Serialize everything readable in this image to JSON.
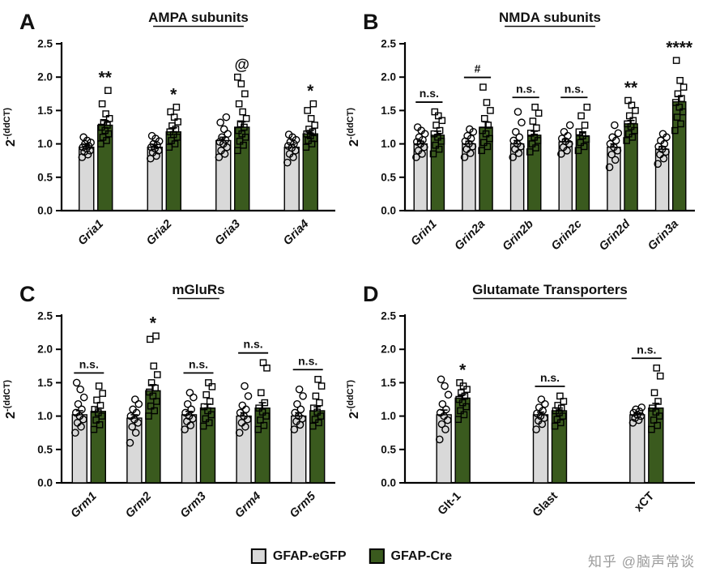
{
  "page": {
    "background": "#ffffff",
    "watermark": "知乎 @脑声常谈"
  },
  "legend": {
    "items": [
      {
        "label": "GFAP-eGFP",
        "color": "#d9d9d9"
      },
      {
        "label": "GFAP-Cre",
        "color": "#3a5a1e"
      }
    ]
  },
  "chart_data": [
    {
      "type": "bar",
      "panel": "A",
      "title": "AMPA subunits",
      "ylabel_base": "2",
      "ylabel_sup": "-(ddCT)",
      "ylim": [
        0,
        2.5
      ],
      "yticks": [
        0,
        0.5,
        1,
        1.5,
        2,
        2.5
      ],
      "categories": [
        "Gria1",
        "Gria2",
        "Gria3",
        "Gria4"
      ],
      "categories_italic": true,
      "series": [
        {
          "name": "GFAP-eGFP",
          "color": "#d9d9d9",
          "marker": "circle",
          "values": [
            0.95,
            0.95,
            1.05,
            0.95
          ],
          "errors": [
            0.04,
            0.04,
            0.05,
            0.04
          ],
          "points": [
            [
              0.8,
              0.84,
              0.88,
              0.9,
              0.93,
              0.95,
              0.97,
              1.0,
              1.02,
              1.05,
              1.1
            ],
            [
              0.78,
              0.82,
              0.87,
              0.9,
              0.93,
              0.95,
              0.98,
              1.0,
              1.04,
              1.08,
              1.12
            ],
            [
              0.8,
              0.85,
              0.9,
              0.95,
              1.0,
              1.03,
              1.06,
              1.1,
              1.15,
              1.22,
              1.32,
              1.4
            ],
            [
              0.72,
              0.8,
              0.85,
              0.9,
              0.94,
              0.97,
              1.0,
              1.03,
              1.06,
              1.1,
              1.14
            ]
          ]
        },
        {
          "name": "GFAP-Cre",
          "color": "#3a5a1e",
          "marker": "square",
          "values": [
            1.28,
            1.18,
            1.25,
            1.15
          ],
          "errors": [
            0.07,
            0.06,
            0.08,
            0.05
          ],
          "points": [
            [
              1.0,
              1.05,
              1.1,
              1.15,
              1.2,
              1.25,
              1.28,
              1.32,
              1.38,
              1.45,
              1.6,
              1.8
            ],
            [
              0.95,
              1.0,
              1.05,
              1.1,
              1.14,
              1.18,
              1.22,
              1.27,
              1.33,
              1.4,
              1.48,
              1.55
            ],
            [
              0.9,
              0.98,
              1.04,
              1.1,
              1.15,
              1.2,
              1.25,
              1.3,
              1.38,
              1.48,
              1.6,
              1.75,
              1.9,
              2.0
            ],
            [
              0.95,
              1.0,
              1.05,
              1.08,
              1.12,
              1.15,
              1.18,
              1.22,
              1.28,
              1.38,
              1.5,
              1.6
            ]
          ]
        }
      ],
      "annotations": [
        {
          "text": "**",
          "bracket": false
        },
        {
          "text": "*",
          "bracket": false
        },
        {
          "text": "@",
          "bracket": false
        },
        {
          "text": "*",
          "bracket": false
        }
      ]
    },
    {
      "type": "bar",
      "panel": "B",
      "title": "NMDA subunits",
      "ylabel_base": "2",
      "ylabel_sup": "-(ddCT)",
      "ylim": [
        0,
        2.5
      ],
      "yticks": [
        0,
        0.5,
        1,
        1.5,
        2,
        2.5
      ],
      "categories": [
        "Grin1",
        "Grin2a",
        "Grin2b",
        "Grin2c",
        "Grin2d",
        "Grin3a"
      ],
      "categories_italic": true,
      "series": [
        {
          "name": "GFAP-eGFP",
          "color": "#d9d9d9",
          "marker": "circle",
          "values": [
            1.0,
            1.0,
            1.0,
            1.03,
            0.95,
            0.92
          ],
          "errors": [
            0.04,
            0.04,
            0.05,
            0.04,
            0.05,
            0.04
          ],
          "points": [
            [
              0.8,
              0.85,
              0.9,
              0.95,
              1.0,
              1.03,
              1.06,
              1.1,
              1.15,
              1.2,
              1.25
            ],
            [
              0.8,
              0.86,
              0.92,
              0.96,
              1.0,
              1.04,
              1.08,
              1.12,
              1.18,
              1.22
            ],
            [
              0.8,
              0.86,
              0.92,
              0.96,
              1.0,
              1.05,
              1.1,
              1.18,
              1.32,
              1.48
            ],
            [
              0.85,
              0.9,
              0.95,
              1.0,
              1.04,
              1.08,
              1.12,
              1.18,
              1.28
            ],
            [
              0.65,
              0.76,
              0.84,
              0.9,
              0.95,
              1.0,
              1.05,
              1.1,
              1.16,
              1.28
            ],
            [
              0.7,
              0.78,
              0.84,
              0.88,
              0.92,
              0.96,
              1.0,
              1.05,
              1.1,
              1.15
            ]
          ]
        },
        {
          "name": "GFAP-Cre",
          "color": "#3a5a1e",
          "marker": "square",
          "values": [
            1.13,
            1.25,
            1.13,
            1.12,
            1.3,
            1.63
          ],
          "errors": [
            0.06,
            0.08,
            0.06,
            0.06,
            0.05,
            0.08
          ],
          "points": [
            [
              0.85,
              0.92,
              0.98,
              1.04,
              1.1,
              1.15,
              1.2,
              1.28,
              1.35,
              1.42,
              1.48
            ],
            [
              0.9,
              0.96,
              1.02,
              1.08,
              1.15,
              1.2,
              1.28,
              1.38,
              1.5,
              1.62,
              1.85
            ],
            [
              0.88,
              0.94,
              1.0,
              1.05,
              1.1,
              1.16,
              1.24,
              1.34,
              1.46,
              1.55
            ],
            [
              0.9,
              0.96,
              1.02,
              1.07,
              1.12,
              1.18,
              1.28,
              1.42,
              1.55
            ],
            [
              1.05,
              1.1,
              1.15,
              1.2,
              1.26,
              1.3,
              1.35,
              1.42,
              1.5,
              1.58,
              1.65
            ],
            [
              1.2,
              1.3,
              1.4,
              1.48,
              1.55,
              1.62,
              1.68,
              1.75,
              1.85,
              1.95,
              2.25
            ]
          ]
        }
      ],
      "annotations": [
        {
          "text": "n.s.",
          "bracket": true
        },
        {
          "text": "#",
          "bracket": true
        },
        {
          "text": "n.s.",
          "bracket": true
        },
        {
          "text": "n.s.",
          "bracket": true
        },
        {
          "text": "**",
          "bracket": false
        },
        {
          "text": "****",
          "bracket": false
        }
      ]
    },
    {
      "type": "bar",
      "panel": "C",
      "title": "mGluRs",
      "ylabel_base": "2",
      "ylabel_sup": "-(ddCT)",
      "ylim": [
        0,
        2.5
      ],
      "yticks": [
        0,
        0.5,
        1,
        1.5,
        2,
        2.5
      ],
      "categories": [
        "Grm1",
        "Grm2",
        "Grm3",
        "Grm4",
        "Grm5"
      ],
      "categories_italic": true,
      "series": [
        {
          "name": "GFAP-eGFP",
          "color": "#d9d9d9",
          "marker": "circle",
          "values": [
            1.02,
            0.97,
            1.02,
            1.0,
            1.0
          ],
          "errors": [
            0.06,
            0.05,
            0.05,
            0.05,
            0.05
          ],
          "points": [
            [
              0.75,
              0.84,
              0.9,
              0.95,
              1.0,
              1.05,
              1.1,
              1.18,
              1.28,
              1.4,
              1.5
            ],
            [
              0.6,
              0.75,
              0.84,
              0.9,
              0.95,
              1.0,
              1.05,
              1.1,
              1.18,
              1.25
            ],
            [
              0.8,
              0.86,
              0.92,
              0.96,
              1.0,
              1.05,
              1.1,
              1.18,
              1.28,
              1.35
            ],
            [
              0.75,
              0.84,
              0.9,
              0.95,
              1.0,
              1.05,
              1.1,
              1.16,
              1.3,
              1.45
            ],
            [
              0.8,
              0.87,
              0.92,
              0.96,
              1.0,
              1.05,
              1.1,
              1.18,
              1.3,
              1.4
            ]
          ]
        },
        {
          "name": "GFAP-Cre",
          "color": "#3a5a1e",
          "marker": "square",
          "values": [
            1.07,
            1.38,
            1.12,
            1.12,
            1.08
          ],
          "errors": [
            0.05,
            0.09,
            0.06,
            0.08,
            0.06
          ],
          "points": [
            [
              0.8,
              0.87,
              0.94,
              1.0,
              1.05,
              1.1,
              1.16,
              1.24,
              1.34,
              1.45
            ],
            [
              1.0,
              1.08,
              1.15,
              1.22,
              1.3,
              1.36,
              1.42,
              1.5,
              1.62,
              1.75,
              2.15,
              2.2
            ],
            [
              0.85,
              0.9,
              0.96,
              1.02,
              1.08,
              1.14,
              1.22,
              1.32,
              1.44,
              1.5
            ],
            [
              0.8,
              0.86,
              0.94,
              1.0,
              1.06,
              1.12,
              1.2,
              1.35,
              1.72,
              1.8
            ],
            [
              0.85,
              0.9,
              0.95,
              1.0,
              1.06,
              1.12,
              1.2,
              1.3,
              1.45,
              1.55
            ]
          ]
        }
      ],
      "annotations": [
        {
          "text": "n.s.",
          "bracket": true
        },
        {
          "text": "*",
          "bracket": false
        },
        {
          "text": "n.s.",
          "bracket": true
        },
        {
          "text": "n.s.",
          "bracket": true
        },
        {
          "text": "n.s.",
          "bracket": true
        }
      ]
    },
    {
      "type": "bar",
      "panel": "D",
      "title": "Glutamate Transporters",
      "ylabel_base": "2",
      "ylabel_sup": "-(ddCT)",
      "ylim": [
        0,
        2.5
      ],
      "yticks": [
        0,
        0.5,
        1,
        1.5,
        2,
        2.5
      ],
      "categories": [
        "Glt-1",
        "Glast",
        "xCT"
      ],
      "categories_italic": false,
      "series": [
        {
          "name": "GFAP-eGFP",
          "color": "#d9d9d9",
          "marker": "circle",
          "values": [
            1.02,
            1.02,
            1.02
          ],
          "errors": [
            0.07,
            0.04,
            0.02
          ],
          "points": [
            [
              0.65,
              0.8,
              0.88,
              0.94,
              1.0,
              1.05,
              1.1,
              1.18,
              1.32,
              1.45,
              1.55
            ],
            [
              0.8,
              0.88,
              0.93,
              0.97,
              1.0,
              1.04,
              1.08,
              1.13,
              1.18,
              1.25
            ],
            [
              0.9,
              0.94,
              0.97,
              1.0,
              1.02,
              1.05,
              1.07,
              1.1,
              1.13
            ]
          ]
        },
        {
          "name": "GFAP-Cre",
          "color": "#3a5a1e",
          "marker": "square",
          "values": [
            1.27,
            1.08,
            1.12
          ],
          "errors": [
            0.05,
            0.04,
            0.07
          ],
          "points": [
            [
              0.95,
              1.02,
              1.08,
              1.14,
              1.2,
              1.25,
              1.3,
              1.35,
              1.4,
              1.45,
              1.5
            ],
            [
              0.85,
              0.9,
              0.95,
              1.0,
              1.05,
              1.08,
              1.12,
              1.16,
              1.22,
              1.3
            ],
            [
              0.8,
              0.86,
              0.94,
              1.0,
              1.06,
              1.12,
              1.22,
              1.35,
              1.6,
              1.72
            ]
          ]
        }
      ],
      "annotations": [
        {
          "text": "*",
          "bracket": false
        },
        {
          "text": "n.s.",
          "bracket": true
        },
        {
          "text": "n.s.",
          "bracket": true
        }
      ]
    }
  ]
}
